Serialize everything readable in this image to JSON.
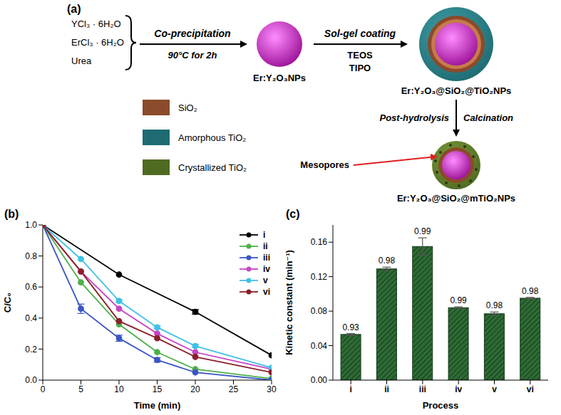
{
  "diagram": {
    "panel": "(a)",
    "reagents": [
      "YCl₃ · 6H₂O",
      "ErCl₃ · 6H₂O",
      "Urea"
    ],
    "arrows": [
      {
        "labels": [
          "Co-precipitation",
          "90°C for 2h"
        ]
      },
      {
        "labels": [
          "Sol-gel coating",
          "TEOS",
          "TIPO"
        ]
      },
      {
        "labels": [
          "Post-hydrolysis",
          "Calcination"
        ]
      }
    ],
    "particles": [
      "Er:Y₂O₃NPs",
      "Er:Y₂O₃@SiO₂@TiO₂NPs",
      "Er:Y₂O₃@SiO₂@mTiO₂NPs"
    ],
    "legend": [
      {
        "label": "SiO₂",
        "color": "#8b4a2b"
      },
      {
        "label": "Amorphous TiO₂",
        "color": "#1f6b72"
      },
      {
        "label": "Crystallized TiO₂",
        "color": "#4f6b22"
      }
    ],
    "callout": "Mesopores"
  },
  "chart_data": [
    {
      "type": "line",
      "panel": "(b)",
      "x_label": "Time (min)",
      "y_label": "C/C₀",
      "x": [
        0,
        5,
        10,
        15,
        20,
        30
      ],
      "series": [
        {
          "name": "i",
          "color": "#000000",
          "x": [
            0,
            10,
            20,
            30
          ],
          "values": [
            1,
            0.68,
            0.44,
            0.16
          ],
          "errors": [
            0,
            0,
            0.015,
            0
          ]
        },
        {
          "name": "ii",
          "color": "#4daf4a",
          "values": [
            1,
            0.63,
            0.36,
            0.18,
            0.07,
            0.01
          ]
        },
        {
          "name": "iii",
          "color": "#3b55c4",
          "values": [
            1,
            0.46,
            0.27,
            0.13,
            0.05,
            0.0
          ],
          "errors": [
            0,
            0.03,
            0.02,
            0.015,
            0,
            0
          ]
        },
        {
          "name": "iv",
          "color": "#c545c5",
          "values": [
            1,
            0.7,
            0.46,
            0.3,
            0.18,
            0.07
          ]
        },
        {
          "name": "v",
          "color": "#3fc1e6",
          "values": [
            1,
            0.78,
            0.51,
            0.34,
            0.22,
            0.08
          ],
          "errors": [
            0,
            0,
            0.01,
            0.01,
            0.01,
            0
          ]
        },
        {
          "name": "vi",
          "color": "#8b1f2b",
          "values": [
            1,
            0.7,
            0.38,
            0.27,
            0.15,
            0.05
          ]
        }
      ],
      "xlim": [
        0,
        30
      ],
      "xticks": [
        0,
        5,
        10,
        15,
        20,
        25,
        30
      ],
      "ylim": [
        0,
        1
      ],
      "yticks": [
        {
          "value": 0,
          "label": "0.0"
        },
        {
          "value": 0.2,
          "label": "0.2"
        },
        {
          "value": 0.4,
          "label": "0.4"
        },
        {
          "value": 0.6,
          "label": "0.6"
        },
        {
          "value": 0.8,
          "label": "0.8"
        },
        {
          "value": 1,
          "label": "1.0"
        }
      ],
      "marker": "circle",
      "legend": "upper right",
      "grid": false
    },
    {
      "type": "bar",
      "panel": "(c)",
      "x_label": "Process",
      "y_label": "Kinetic constant (min⁻¹)",
      "categories": [
        "i",
        "ii",
        "iii",
        "iv",
        "v",
        "vi"
      ],
      "values": [
        0.053,
        0.129,
        0.155,
        0.084,
        0.077,
        0.095
      ],
      "errors": [
        0.001,
        0.002,
        0.01,
        0.001,
        0.002,
        0.001
      ],
      "r_squared": [
        0.93,
        0.98,
        0.99,
        0.99,
        0.98,
        0.98
      ],
      "color": "#2e6b35",
      "ylim": [
        0,
        0.18
      ],
      "yticks": [
        {
          "value": 0,
          "label": "0.00"
        },
        {
          "value": 0.04,
          "label": "0.04"
        },
        {
          "value": 0.08,
          "label": "0.08"
        },
        {
          "value": 0.12,
          "label": "0.12"
        },
        {
          "value": 0.16,
          "label": "0.16"
        }
      ],
      "grid": false
    }
  ]
}
